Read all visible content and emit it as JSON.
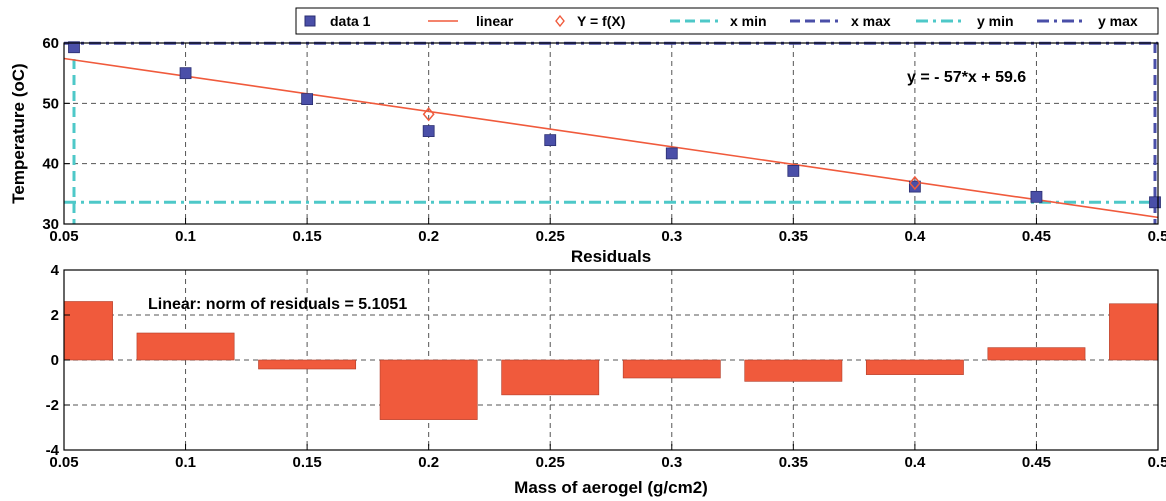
{
  "chart_data": [
    {
      "type": "scatter",
      "title": "",
      "xlabel": "",
      "ylabel": "Temperature (oC)",
      "xlim": [
        0.05,
        0.5
      ],
      "ylim": [
        30,
        60
      ],
      "x_ticks": [
        "0.05",
        "0.1",
        "0.15",
        "0.2",
        "0.25",
        "0.3",
        "0.35",
        "0.4",
        "0.45",
        "0.5"
      ],
      "y_ticks": [
        "30",
        "40",
        "50",
        "60"
      ],
      "grid": true,
      "legend_position": "top",
      "legend": [
        "data 1",
        "linear",
        "Y = f(X)",
        "x min",
        "x max",
        "y min",
        "y max"
      ],
      "series": [
        {
          "name": "data 1",
          "x": [
            0.05,
            0.1,
            0.15,
            0.2,
            0.25,
            0.3,
            0.35,
            0.4,
            0.45,
            0.5
          ],
          "y": [
            59.3,
            55.0,
            50.7,
            45.4,
            43.9,
            41.7,
            38.8,
            36.2,
            34.5,
            33.6
          ],
          "color": "#4a4fa8"
        },
        {
          "name": "linear",
          "fit": {
            "slope": -57,
            "intercept": 59.6
          },
          "x_range": [
            0.05,
            0.5
          ],
          "color": "#f05a3c"
        },
        {
          "name": "Y = f(X)",
          "x": [
            0.2,
            0.4
          ],
          "y": [
            48.2,
            36.8
          ],
          "color": "#f05a3c"
        },
        {
          "name": "x min",
          "value": 0.05,
          "color": "#4ec8c8"
        },
        {
          "name": "x max",
          "value": 0.5,
          "color": "#4a4fa8"
        },
        {
          "name": "y min",
          "value": 33.6,
          "color": "#4ec8c8"
        },
        {
          "name": "y max",
          "value": 59.3,
          "color": "#4a4fa8"
        }
      ],
      "annotation": "y = - 57*x + 59.6"
    },
    {
      "type": "bar",
      "title": "Residuals",
      "xlabel": "Mass of aerogel (g/cm2)",
      "ylabel": "",
      "xlim": [
        0.05,
        0.5
      ],
      "ylim": [
        -4,
        4
      ],
      "x_ticks": [
        "0.05",
        "0.1",
        "0.15",
        "0.2",
        "0.25",
        "0.3",
        "0.35",
        "0.4",
        "0.45",
        "0.5"
      ],
      "y_ticks": [
        "-4",
        "-2",
        "0",
        "2",
        "4"
      ],
      "grid": true,
      "categories": [
        0.05,
        0.1,
        0.15,
        0.2,
        0.25,
        0.3,
        0.35,
        0.4,
        0.45,
        0.5
      ],
      "values": [
        2.6,
        1.2,
        -0.4,
        -2.65,
        -1.55,
        -0.8,
        -0.95,
        -0.65,
        0.55,
        2.5
      ],
      "color": "#f05a3c",
      "annotation": "Linear: norm of residuals = 5.1051"
    }
  ]
}
